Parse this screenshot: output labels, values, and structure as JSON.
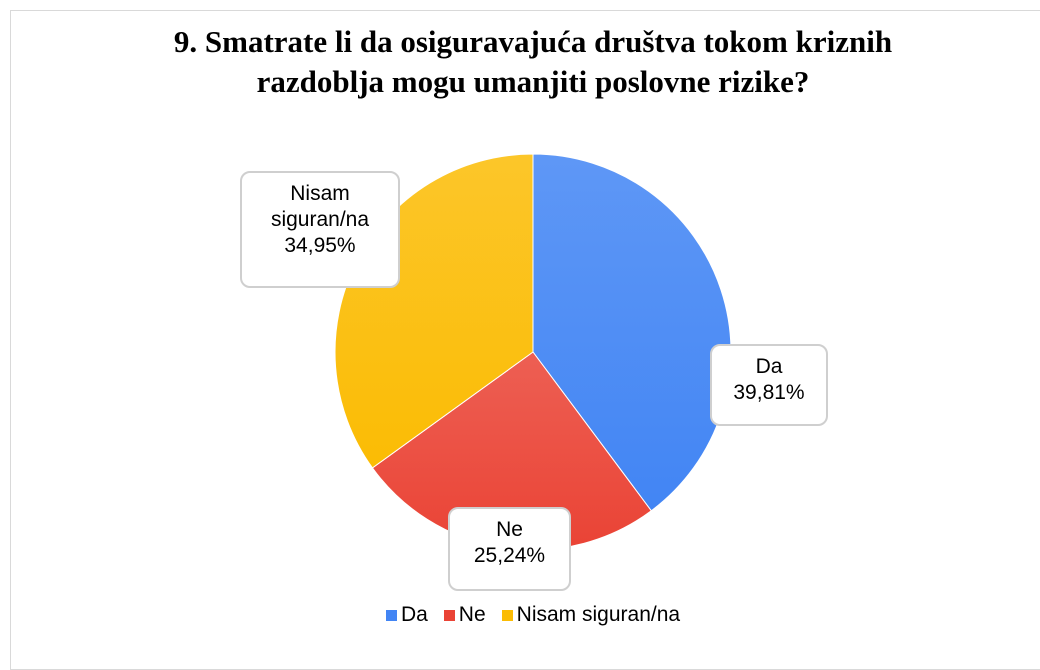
{
  "chart_data": {
    "type": "pie",
    "title": "9. Smatrate li da osiguravajuća društva tokom kriznih razdoblja mogu umanjiti poslovne rizike?",
    "categories": [
      "Da",
      "Ne",
      "Nisam siguran/na"
    ],
    "values": [
      39.81,
      25.24,
      34.95
    ],
    "value_labels": [
      "39,81%",
      "25,24%",
      "34,95%"
    ],
    "colors": [
      "#4285f4",
      "#ea4335",
      "#fbbc04"
    ],
    "legend": "bottom"
  }
}
